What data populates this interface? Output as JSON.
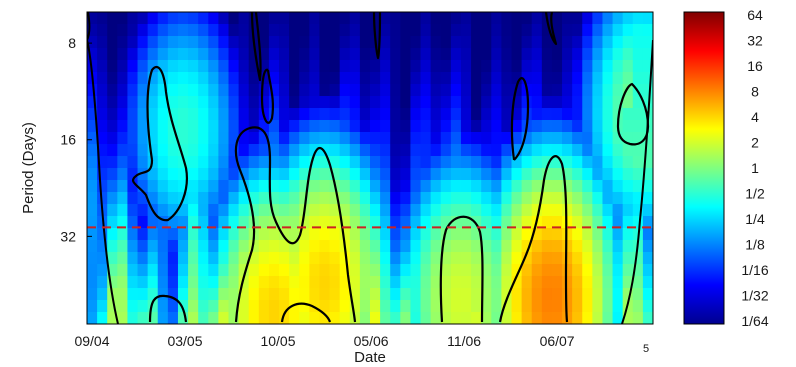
{
  "chart_data": {
    "type": "heatmap",
    "title": "",
    "xlabel": "Date",
    "ylabel": "Period (Days)",
    "x_tick_labels": [
      "09/04",
      "03/05",
      "10/05",
      "05/06",
      "11/06",
      "06/07"
    ],
    "x_corner_label": "5",
    "y_tick_labels": [
      "8",
      "16",
      "32"
    ],
    "y_ticks": [
      8,
      16,
      32
    ],
    "y_scale": "log2",
    "ylim": [
      6.4,
      60
    ],
    "y_reversed": true,
    "reference_period": 30,
    "colorbar": {
      "labels": [
        "64",
        "32",
        "16",
        "8",
        "4",
        "2",
        "1",
        "1/2",
        "1/4",
        "1/8",
        "1/16",
        "1/32",
        "1/64"
      ],
      "scale": "log2",
      "range": [
        "1/64",
        "64"
      ],
      "colormap": "jet"
    },
    "significance_contours": true,
    "cone_of_influence": true,
    "hot_spots": [
      {
        "x_fraction": 0.42,
        "period": 45,
        "power": "4"
      },
      {
        "x_fraction": 0.82,
        "period": 50,
        "power": "8"
      },
      {
        "x_fraction": 0.33,
        "period": 55,
        "power": "4"
      },
      {
        "x_fraction": 0.66,
        "period": 50,
        "power": "2"
      },
      {
        "x_fraction": 0.17,
        "period": 15,
        "power": "1/2"
      },
      {
        "x_fraction": 0.98,
        "period": 13,
        "power": "1"
      }
    ]
  }
}
